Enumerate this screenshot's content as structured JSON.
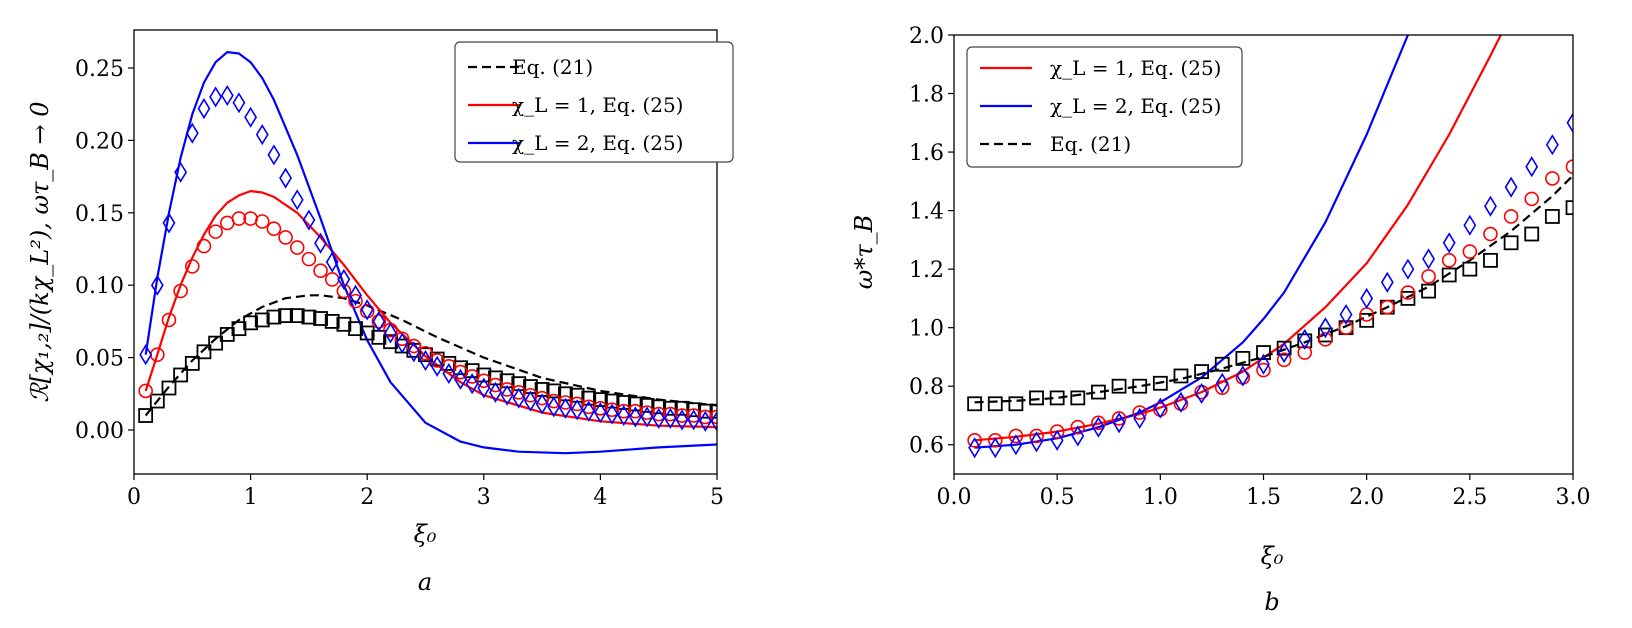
{
  "chart_data": [
    {
      "type": "line",
      "panel_label": "a",
      "xlabel": "ξ₀",
      "ylabel": "ℛ[χ₁,₂]/(kχ_L²), ωτ_B → 0",
      "xlim": [
        0,
        5
      ],
      "ylim": [
        -0.03,
        0.27
      ],
      "xticks": [
        0,
        1,
        2,
        3,
        4,
        5
      ],
      "xtick_labels": [
        "0",
        "1",
        "2",
        "3",
        "4",
        "5"
      ],
      "yticks": [
        0.0,
        0.05,
        0.1,
        0.15,
        0.2,
        0.25
      ],
      "ytick_labels": [
        "0.00",
        "0.05",
        "0.10",
        "0.15",
        "0.20",
        "0.25"
      ],
      "grid": false,
      "legend_position": "top-right",
      "legend": [
        {
          "label": "Eq. (21)",
          "color": "#000000",
          "style": "dashed"
        },
        {
          "label": "χ_L = 1, Eq. (25)",
          "color": "#ff0000",
          "style": "solid"
        },
        {
          "label": "χ_L = 2, Eq. (25)",
          "color": "#0000ff",
          "style": "solid"
        }
      ],
      "series": [
        {
          "name": "Eq. (21)",
          "kind": "line",
          "color": "#000000",
          "style": "dashed",
          "x": [
            0.1,
            0.3,
            0.5,
            0.7,
            0.9,
            1.1,
            1.3,
            1.5,
            1.6,
            1.8,
            2.0,
            2.3,
            2.6,
            3.0,
            3.5,
            4.0,
            4.5,
            5.0
          ],
          "y": [
            0.01,
            0.03,
            0.048,
            0.063,
            0.076,
            0.085,
            0.091,
            0.093,
            0.093,
            0.091,
            0.086,
            0.076,
            0.064,
            0.05,
            0.036,
            0.027,
            0.021,
            0.017
          ]
        },
        {
          "name": "χ_L = 1, Eq. (25)",
          "kind": "line",
          "color": "#ff0000",
          "style": "solid",
          "x": [
            0.1,
            0.2,
            0.3,
            0.4,
            0.5,
            0.6,
            0.7,
            0.8,
            0.9,
            1.0,
            1.1,
            1.2,
            1.4,
            1.6,
            1.8,
            2.0,
            2.2,
            2.5,
            2.8,
            3.0,
            3.5,
            4.0,
            4.5,
            5.0
          ],
          "y": [
            0.027,
            0.052,
            0.078,
            0.1,
            0.119,
            0.135,
            0.148,
            0.157,
            0.162,
            0.165,
            0.164,
            0.161,
            0.15,
            0.133,
            0.114,
            0.093,
            0.074,
            0.051,
            0.033,
            0.024,
            0.012,
            0.006,
            0.003,
            0.002
          ]
        },
        {
          "name": "χ_L = 2, Eq. (25)",
          "kind": "line",
          "color": "#0000ff",
          "style": "solid",
          "x": [
            0.1,
            0.2,
            0.3,
            0.4,
            0.5,
            0.6,
            0.7,
            0.8,
            0.9,
            1.0,
            1.1,
            1.2,
            1.4,
            1.6,
            1.8,
            2.0,
            2.2,
            2.5,
            2.8,
            3.0,
            3.3,
            3.7,
            4.0,
            4.5,
            5.0
          ],
          "y": [
            0.052,
            0.105,
            0.15,
            0.188,
            0.218,
            0.24,
            0.254,
            0.261,
            0.26,
            0.254,
            0.243,
            0.228,
            0.19,
            0.146,
            0.1,
            0.062,
            0.033,
            0.005,
            -0.008,
            -0.012,
            -0.015,
            -0.016,
            -0.015,
            -0.012,
            -0.01
          ]
        },
        {
          "name": "Eq. (21) points",
          "kind": "markers",
          "marker": "square",
          "color": "#000000",
          "x": [
            0.1,
            0.2,
            0.3,
            0.4,
            0.5,
            0.6,
            0.7,
            0.8,
            0.9,
            1.0,
            1.1,
            1.2,
            1.3,
            1.4,
            1.5,
            1.6,
            1.7,
            1.8,
            1.9,
            2.0,
            2.1,
            2.2,
            2.3,
            2.4,
            2.5,
            2.6,
            2.7,
            2.8,
            2.9,
            3.0,
            3.1,
            3.2,
            3.3,
            3.4,
            3.5,
            3.6,
            3.7,
            3.8,
            3.9,
            4.0,
            4.1,
            4.2,
            4.3,
            4.4,
            4.5,
            4.6,
            4.7,
            4.8,
            4.9,
            5.0
          ],
          "y": [
            0.01,
            0.02,
            0.029,
            0.038,
            0.046,
            0.054,
            0.06,
            0.066,
            0.07,
            0.074,
            0.076,
            0.078,
            0.079,
            0.079,
            0.078,
            0.077,
            0.075,
            0.073,
            0.07,
            0.067,
            0.064,
            0.061,
            0.058,
            0.055,
            0.052,
            0.049,
            0.046,
            0.043,
            0.041,
            0.038,
            0.036,
            0.034,
            0.032,
            0.03,
            0.028,
            0.027,
            0.025,
            0.024,
            0.022,
            0.021,
            0.02,
            0.019,
            0.018,
            0.017,
            0.016,
            0.015,
            0.015,
            0.014,
            0.013,
            0.013
          ]
        },
        {
          "name": "χ_L = 1 points",
          "kind": "markers",
          "marker": "circle",
          "color": "#ff0000",
          "x": [
            0.1,
            0.2,
            0.3,
            0.4,
            0.5,
            0.6,
            0.7,
            0.8,
            0.9,
            1.0,
            1.1,
            1.2,
            1.3,
            1.4,
            1.5,
            1.6,
            1.7,
            1.8,
            1.9,
            2.0,
            2.1,
            2.2,
            2.3,
            2.4,
            2.5,
            2.6,
            2.7,
            2.8,
            2.9,
            3.0,
            3.1,
            3.2,
            3.3,
            3.4,
            3.5,
            3.6,
            3.7,
            3.8,
            3.9,
            4.0,
            4.1,
            4.2,
            4.3,
            4.4,
            4.5,
            4.6,
            4.7,
            4.8,
            4.9,
            5.0
          ],
          "y": [
            0.027,
            0.052,
            0.076,
            0.096,
            0.113,
            0.127,
            0.137,
            0.143,
            0.146,
            0.146,
            0.144,
            0.139,
            0.133,
            0.126,
            0.118,
            0.11,
            0.104,
            0.096,
            0.089,
            0.082,
            0.075,
            0.069,
            0.063,
            0.058,
            0.053,
            0.048,
            0.044,
            0.04,
            0.037,
            0.034,
            0.031,
            0.028,
            0.026,
            0.024,
            0.022,
            0.02,
            0.019,
            0.018,
            0.016,
            0.015,
            0.014,
            0.013,
            0.013,
            0.012,
            0.011,
            0.011,
            0.01,
            0.01,
            0.009,
            0.009
          ]
        },
        {
          "name": "χ_L = 2 points",
          "kind": "markers",
          "marker": "diamond",
          "color": "#0000ff",
          "x": [
            0.1,
            0.2,
            0.3,
            0.4,
            0.5,
            0.6,
            0.7,
            0.8,
            0.9,
            1.0,
            1.1,
            1.2,
            1.3,
            1.4,
            1.5,
            1.6,
            1.7,
            1.8,
            1.9,
            2.0,
            2.1,
            2.2,
            2.3,
            2.4,
            2.5,
            2.6,
            2.7,
            2.8,
            2.9,
            3.0,
            3.1,
            3.2,
            3.3,
            3.4,
            3.5,
            3.6,
            3.7,
            3.8,
            3.9,
            4.0,
            4.1,
            4.2,
            4.3,
            4.4,
            4.5,
            4.6,
            4.7,
            4.8,
            4.9,
            5.0
          ],
          "y": [
            0.052,
            0.1,
            0.143,
            0.178,
            0.205,
            0.222,
            0.23,
            0.231,
            0.226,
            0.216,
            0.204,
            0.19,
            0.174,
            0.159,
            0.145,
            0.129,
            0.116,
            0.104,
            0.093,
            0.083,
            0.075,
            0.067,
            0.06,
            0.054,
            0.048,
            0.044,
            0.039,
            0.035,
            0.032,
            0.029,
            0.026,
            0.024,
            0.022,
            0.02,
            0.018,
            0.016,
            0.015,
            0.014,
            0.013,
            0.012,
            0.011,
            0.01,
            0.009,
            0.009,
            0.008,
            0.008,
            0.007,
            0.007,
            0.006,
            0.006
          ]
        }
      ]
    },
    {
      "type": "line",
      "panel_label": "b",
      "xlabel": "ξ₀",
      "ylabel": "ω*τ_B",
      "xlim": [
        0,
        3
      ],
      "ylim": [
        0.5,
        2.0
      ],
      "xticks": [
        0,
        0.5,
        1.0,
        1.5,
        2.0,
        2.5,
        3.0
      ],
      "xtick_labels": [
        "0.0",
        "0.5",
        "1.0",
        "1.5",
        "2.0",
        "2.5",
        "3.0"
      ],
      "yticks": [
        0.6,
        0.8,
        1.0,
        1.2,
        1.4,
        1.6,
        1.8,
        2.0
      ],
      "ytick_labels": [
        "0.6",
        "0.8",
        "1.0",
        "1.2",
        "1.4",
        "1.6",
        "1.8",
        "2.0"
      ],
      "grid": false,
      "legend_position": "top-left",
      "legend": [
        {
          "label": "χ_L = 1, Eq. (25)",
          "color": "#ff0000",
          "style": "solid"
        },
        {
          "label": "χ_L = 2, Eq. (25)",
          "color": "#0000ff",
          "style": "solid"
        },
        {
          "label": "Eq. (21)",
          "color": "#000000",
          "style": "dashed"
        }
      ],
      "series": [
        {
          "name": "χ_L = 1, Eq. (25)",
          "kind": "line",
          "color": "#ff0000",
          "style": "solid",
          "x": [
            0.1,
            0.3,
            0.5,
            0.7,
            0.9,
            1.0,
            1.2,
            1.4,
            1.6,
            1.8,
            2.0,
            2.2,
            2.4,
            2.6,
            2.7
          ],
          "y": [
            0.615,
            0.627,
            0.645,
            0.672,
            0.705,
            0.727,
            0.78,
            0.85,
            0.945,
            1.07,
            1.22,
            1.42,
            1.66,
            1.93,
            2.07
          ]
        },
        {
          "name": "χ_L = 2, Eq. (25)",
          "kind": "line",
          "color": "#0000ff",
          "style": "solid",
          "x": [
            0.1,
            0.3,
            0.5,
            0.7,
            0.9,
            1.0,
            1.2,
            1.4,
            1.5,
            1.6,
            1.8,
            2.0,
            2.2,
            2.25
          ],
          "y": [
            0.59,
            0.6,
            0.622,
            0.66,
            0.71,
            0.745,
            0.83,
            0.95,
            1.03,
            1.12,
            1.36,
            1.66,
            2.0,
            2.09
          ]
        },
        {
          "name": "Eq. (21)",
          "kind": "line",
          "color": "#000000",
          "style": "dashed",
          "x": [
            0.1,
            0.3,
            0.5,
            0.7,
            0.9,
            1.1,
            1.3,
            1.5,
            1.7,
            1.9,
            2.1,
            2.3,
            2.5,
            2.7,
            2.9,
            3.0
          ],
          "y": [
            0.745,
            0.75,
            0.76,
            0.78,
            0.8,
            0.825,
            0.86,
            0.9,
            0.95,
            1.005,
            1.07,
            1.14,
            1.23,
            1.33,
            1.45,
            1.52
          ]
        },
        {
          "name": "Eq. (21) points",
          "kind": "markers",
          "marker": "square",
          "color": "#000000",
          "x": [
            0.1,
            0.2,
            0.3,
            0.4,
            0.5,
            0.6,
            0.7,
            0.8,
            0.9,
            1.0,
            1.1,
            1.2,
            1.3,
            1.4,
            1.5,
            1.6,
            1.7,
            1.8,
            1.9,
            2.0,
            2.1,
            2.2,
            2.3,
            2.4,
            2.5,
            2.6,
            2.7,
            2.8,
            2.9,
            3.0
          ],
          "y": [
            0.74,
            0.74,
            0.74,
            0.76,
            0.76,
            0.76,
            0.78,
            0.8,
            0.8,
            0.81,
            0.835,
            0.85,
            0.875,
            0.895,
            0.915,
            0.93,
            0.955,
            0.975,
            1.0,
            1.025,
            1.07,
            1.1,
            1.125,
            1.18,
            1.2,
            1.23,
            1.29,
            1.32,
            1.38,
            1.41
          ]
        },
        {
          "name": "χ_L = 1 points",
          "kind": "markers",
          "marker": "circle",
          "color": "#ff0000",
          "x": [
            0.1,
            0.2,
            0.3,
            0.4,
            0.5,
            0.6,
            0.7,
            0.8,
            0.9,
            1.0,
            1.1,
            1.2,
            1.3,
            1.4,
            1.5,
            1.6,
            1.7,
            1.8,
            1.9,
            2.0,
            2.1,
            2.2,
            2.3,
            2.4,
            2.5,
            2.6,
            2.7,
            2.8,
            2.9,
            3.0
          ],
          "y": [
            0.615,
            0.615,
            0.63,
            0.63,
            0.645,
            0.66,
            0.675,
            0.69,
            0.71,
            0.72,
            0.74,
            0.78,
            0.795,
            0.83,
            0.855,
            0.89,
            0.915,
            0.96,
            1.0,
            1.045,
            1.07,
            1.12,
            1.175,
            1.23,
            1.26,
            1.32,
            1.38,
            1.44,
            1.51,
            1.55
          ]
        },
        {
          "name": "χ_L = 2 points",
          "kind": "markers",
          "marker": "diamond",
          "color": "#0000ff",
          "x": [
            0.1,
            0.2,
            0.3,
            0.4,
            0.5,
            0.6,
            0.7,
            0.8,
            0.9,
            1.0,
            1.1,
            1.2,
            1.3,
            1.4,
            1.5,
            1.6,
            1.7,
            1.8,
            1.9,
            2.0,
            2.1,
            2.2,
            2.3,
            2.4,
            2.5,
            2.6,
            2.7,
            2.8,
            2.9,
            3.0
          ],
          "y": [
            0.59,
            0.59,
            0.6,
            0.61,
            0.615,
            0.63,
            0.66,
            0.675,
            0.69,
            0.725,
            0.745,
            0.775,
            0.81,
            0.835,
            0.875,
            0.915,
            0.96,
            1.0,
            1.045,
            1.1,
            1.155,
            1.2,
            1.235,
            1.29,
            1.35,
            1.415,
            1.48,
            1.55,
            1.625,
            1.7
          ]
        }
      ]
    }
  ]
}
